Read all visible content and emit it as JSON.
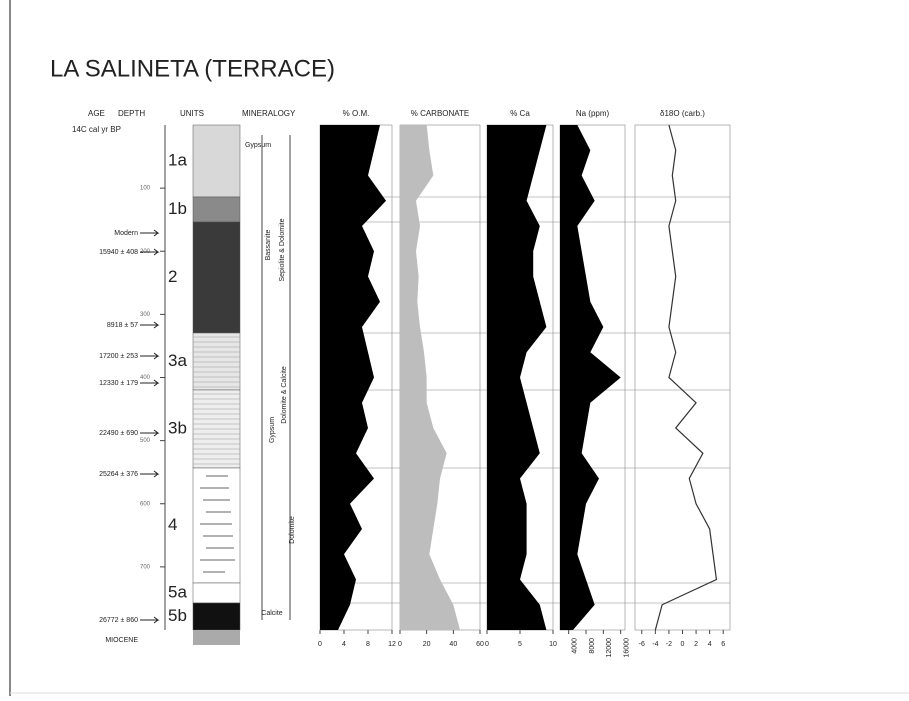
{
  "title": "LA SALINETA (TERRACE)",
  "age_header": "AGE",
  "depth_header": "DEPTH",
  "age_unit": "14C cal yr BP",
  "units_header": "UNITS",
  "mineralogy_header": "MINERALOGY",
  "depth_lim": [
    0,
    800
  ],
  "depth_ticks": [
    100,
    200,
    300,
    400,
    500,
    600,
    700
  ],
  "depth": [
    0,
    40,
    80,
    120,
    160,
    200,
    240,
    280,
    320,
    360,
    400,
    440,
    480,
    520,
    560,
    600,
    640,
    680,
    720,
    760,
    800
  ],
  "units": [
    {
      "label": "1a",
      "color": "#d8d8d8"
    },
    {
      "label": "1b",
      "color": "#8a8a8a"
    },
    {
      "label": "2",
      "color": "#3a3a3a"
    },
    {
      "label": "3a",
      "color": "#e6e6e6"
    },
    {
      "label": "3b",
      "color": "#eeeeee"
    },
    {
      "label": "4",
      "color": "#ffffff"
    },
    {
      "label": "5a",
      "color": "#ffffff"
    },
    {
      "label": "5b",
      "color": "#111111"
    }
  ],
  "ages": [
    "Modern",
    "15940 ± 408",
    "8918 ± 57",
    "17200 ± 253",
    "12330 ± 179",
    "22490 ± 690",
    "25264 ± 376",
    "26772 ± 860",
    "MIOCENE"
  ],
  "mineralogy": [
    "Gypsum",
    "Bassanite",
    "Sepiolite & Dolomite",
    "Gypsum",
    "Dolomite & Calcite",
    "Dolomite",
    "Calcite"
  ],
  "panels": [
    {
      "title": "% O.M.",
      "type": "area",
      "color": "#000000",
      "xlim": [
        0,
        12
      ],
      "xticks": [
        0,
        4,
        8,
        12
      ],
      "values": [
        10,
        9,
        8,
        11,
        7,
        9,
        8,
        10,
        7,
        8,
        9,
        7,
        8,
        6,
        9,
        5,
        7,
        4,
        6,
        5,
        3
      ]
    },
    {
      "title": "% CARBONATE",
      "type": "area",
      "color": "#bdbdbd",
      "xlim": [
        0,
        60
      ],
      "xticks": [
        0,
        20,
        40,
        60
      ],
      "values": [
        20,
        22,
        25,
        12,
        15,
        12,
        14,
        13,
        15,
        18,
        20,
        20,
        25,
        35,
        30,
        28,
        25,
        22,
        30,
        40,
        45
      ]
    },
    {
      "title": "% Ca",
      "type": "area",
      "color": "#000000",
      "xlim": [
        0,
        10
      ],
      "xticks": [
        0,
        5,
        10
      ],
      "values": [
        9,
        8,
        7,
        6,
        8,
        7,
        7,
        8,
        9,
        6,
        5,
        6,
        7,
        8,
        5,
        6,
        6,
        6,
        5,
        8,
        9
      ]
    },
    {
      "title": "Na (ppm)",
      "type": "area",
      "color": "#000000",
      "xlim": [
        2000,
        17000
      ],
      "xticks": [
        4000,
        8000,
        12000,
        16000
      ],
      "values": [
        6000,
        9000,
        7000,
        10000,
        6000,
        7000,
        8000,
        9000,
        12000,
        9000,
        16000,
        9000,
        8000,
        7000,
        11000,
        8000,
        7000,
        6000,
        8000,
        10000,
        5000
      ]
    },
    {
      "title": "δ18O (carb.)",
      "type": "line",
      "color": "#333333",
      "xlim": [
        -7,
        7
      ],
      "xticks": [
        -6,
        -4,
        -2,
        0,
        2,
        4,
        6
      ],
      "values": [
        -2,
        -1,
        -1.5,
        -1,
        -2,
        -1.5,
        -1,
        -1.5,
        -2,
        -1,
        -2,
        2,
        -1,
        3,
        1,
        2,
        4,
        4.5,
        5,
        -3,
        -4
      ]
    }
  ]
}
